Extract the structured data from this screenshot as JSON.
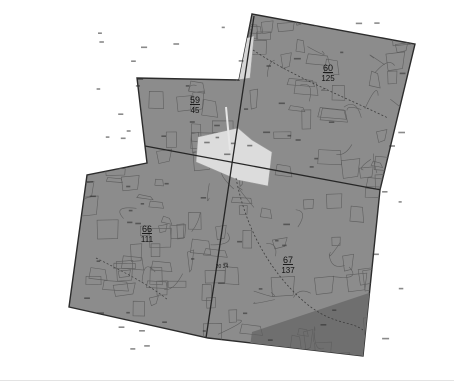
{
  "map": {
    "blocks": [
      {
        "id": "59",
        "sub": "45"
      },
      {
        "id": "60",
        "sub": "125"
      },
      {
        "id": "66",
        "sub": "111"
      },
      {
        "id": "67",
        "sub": "137"
      }
    ],
    "road_label": "20 34",
    "colors": {
      "district_fill": "#8c8c8c",
      "parcel_lines": "#5e5e5e",
      "border": "#2c2c2c",
      "highlight_area": "#dcdcdc",
      "shaded_corner": "#6f6f6f",
      "background": "#ffffff"
    }
  }
}
